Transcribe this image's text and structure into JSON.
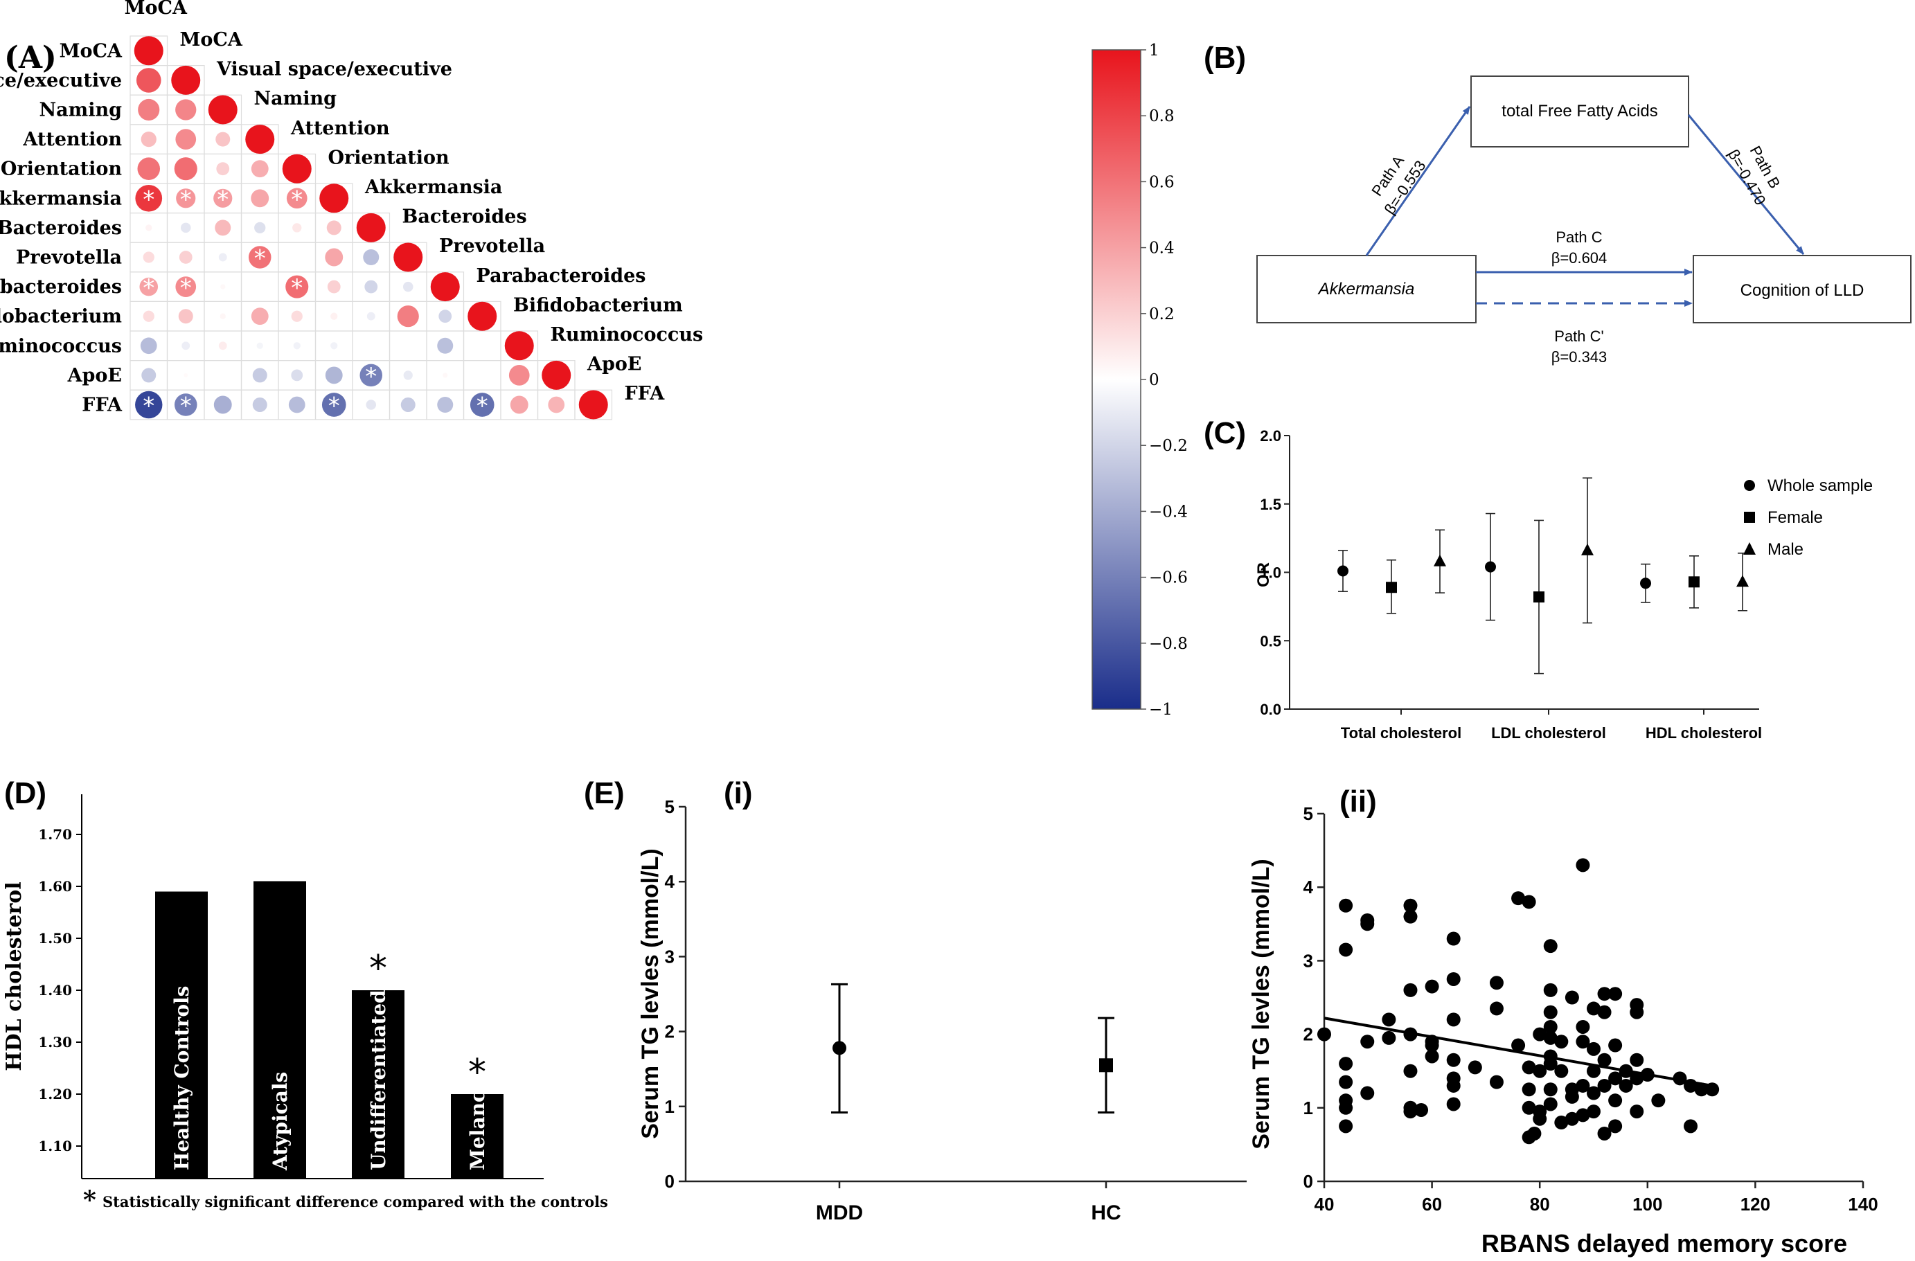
{
  "panels": {
    "A": "(A)",
    "B": "(B)",
    "C": "(C)",
    "D": "(D)",
    "E": "(E)",
    "Ei": "(i)",
    "Eii": "(ii)"
  },
  "chart_data": [
    {
      "id": "A",
      "type": "heatmap",
      "subtype": "correlation-circle-lower-triangle",
      "variables": [
        "MoCA",
        "Visual space/executive",
        "Naming",
        "Attention",
        "Orientation",
        "Akkermansia",
        "Bacteroides",
        "Prevotella",
        "Parabacteroides",
        "Bifidobacterium",
        "Ruminococcus",
        "ApoE",
        "FFA"
      ],
      "matrix": [
        [
          1
        ],
        [
          0.72,
          1
        ],
        [
          0.55,
          0.52,
          1
        ],
        [
          0.28,
          0.5,
          0.25,
          1
        ],
        [
          0.6,
          0.62,
          0.2,
          0.35,
          1
        ],
        [
          0.85,
          0.45,
          0.42,
          0.38,
          0.5,
          1
        ],
        [
          0.05,
          -0.12,
          0.3,
          -0.15,
          0.1,
          0.25,
          1
        ],
        [
          0.15,
          0.2,
          -0.08,
          0.6,
          0.0,
          0.38,
          -0.3,
          1
        ],
        [
          0.4,
          0.5,
          0.03,
          0.0,
          0.62,
          0.2,
          -0.2,
          -0.12,
          1
        ],
        [
          0.15,
          0.25,
          0.04,
          0.35,
          0.15,
          0.06,
          -0.08,
          0.55,
          -0.2,
          1
        ],
        [
          -0.32,
          -0.08,
          0.08,
          -0.05,
          -0.06,
          -0.06,
          0.0,
          0.0,
          -0.3,
          0.0,
          1
        ],
        [
          -0.25,
          0.02,
          0.0,
          -0.25,
          -0.16,
          -0.35,
          -0.6,
          -0.1,
          0.03,
          0.0,
          0.5,
          1
        ],
        [
          -0.88,
          -0.6,
          -0.38,
          -0.25,
          -0.32,
          -0.68,
          -0.12,
          -0.25,
          -0.3,
          -0.68,
          0.38,
          0.32,
          1
        ]
      ],
      "significant": [
        [
          5,
          0
        ],
        [
          5,
          1
        ],
        [
          5,
          2
        ],
        [
          5,
          4
        ],
        [
          7,
          3
        ],
        [
          8,
          0
        ],
        [
          8,
          1
        ],
        [
          8,
          4
        ],
        [
          11,
          9
        ],
        [
          11,
          6
        ],
        [
          12,
          0
        ],
        [
          12,
          1
        ],
        [
          12,
          5
        ],
        [
          12,
          9
        ]
      ],
      "marker": "*",
      "colorbar": {
        "min": -1,
        "max": 1,
        "ticks": [
          "1",
          "0.8",
          "0.6",
          "0.4",
          "0.2",
          "0",
          "−0.2",
          "−0.4",
          "−0.6",
          "−0.8",
          "−1"
        ],
        "high_color": "#e8141c",
        "low_color": "#1a2d8a"
      }
    },
    {
      "id": "C",
      "type": "scatter",
      "subtype": "forest-plot",
      "ylabel": "OR",
      "ylim": [
        0,
        2
      ],
      "yticks": [
        "0.0",
        "0.5",
        "1.0",
        "1.5",
        "2.0"
      ],
      "groups": [
        "Total  cholesterol",
        "LDL cholesterol",
        "HDL cholesterol"
      ],
      "series": [
        {
          "name": "Whole sample",
          "marker": "circle",
          "points": [
            {
              "or": 1.01,
              "lo": 0.86,
              "hi": 1.16
            },
            {
              "or": 1.04,
              "lo": 0.65,
              "hi": 1.43
            },
            {
              "or": 0.92,
              "lo": 0.78,
              "hi": 1.06
            }
          ]
        },
        {
          "name": "Female",
          "marker": "square",
          "points": [
            {
              "or": 0.89,
              "lo": 0.7,
              "hi": 1.09
            },
            {
              "or": 0.82,
              "lo": 0.26,
              "hi": 1.38
            },
            {
              "or": 0.93,
              "lo": 0.74,
              "hi": 1.12
            }
          ]
        },
        {
          "name": "Male",
          "marker": "triangle",
          "points": [
            {
              "or": 1.08,
              "lo": 0.85,
              "hi": 1.31
            },
            {
              "or": 1.16,
              "lo": 0.63,
              "hi": 1.69
            },
            {
              "or": 0.93,
              "lo": 0.72,
              "hi": 1.14
            }
          ]
        }
      ]
    },
    {
      "id": "D",
      "type": "bar",
      "ylabel": "HDL  cholesterol",
      "ylim": [
        1.05,
        1.75
      ],
      "yticks": [
        "1.10",
        "1.20",
        "1.30",
        "1.40",
        "1.50",
        "1.60",
        "1.70"
      ],
      "categories": [
        "Healthy Controls",
        "Atypicals",
        "Undifferentiated",
        "Melancholics"
      ],
      "values": [
        1.59,
        1.61,
        1.4,
        1.2
      ],
      "significant": [
        false,
        false,
        true,
        true
      ],
      "marker": "*",
      "footnote_marker": "*",
      "footnote": "Statistically significant difference compared with the controls"
    },
    {
      "id": "E-i",
      "type": "scatter",
      "subtype": "mean-with-error",
      "ylabel": "Serum TG levles (mmol/L)",
      "ylim": [
        0,
        5
      ],
      "yticks": [
        "0",
        "1",
        "2",
        "3",
        "4",
        "5"
      ],
      "categories": [
        "MDD",
        "HC"
      ],
      "points": [
        {
          "mean": 1.78,
          "lo": 0.92,
          "hi": 2.63,
          "marker": "circle"
        },
        {
          "mean": 1.55,
          "lo": 0.92,
          "hi": 2.18,
          "marker": "square"
        }
      ]
    },
    {
      "id": "E-ii",
      "type": "scatter",
      "xlabel": "RBANS delayed memory score",
      "ylabel": "Serum TG levles (mmol/L)",
      "xlim": [
        40,
        140
      ],
      "ylim": [
        0,
        5
      ],
      "xticks": [
        "40",
        "60",
        "80",
        "100",
        "120",
        "140"
      ],
      "yticks": [
        "0",
        "1",
        "2",
        "3",
        "4",
        "5"
      ],
      "fit_line": {
        "x": [
          40,
          112
        ],
        "y": [
          2.22,
          1.3
        ]
      },
      "points": [
        [
          40,
          2.0
        ],
        [
          44,
          3.75
        ],
        [
          44,
          3.15
        ],
        [
          44,
          1.6
        ],
        [
          44,
          1.35
        ],
        [
          44,
          1.1
        ],
        [
          44,
          1.0
        ],
        [
          44,
          0.75
        ],
        [
          48,
          3.55
        ],
        [
          48,
          3.5
        ],
        [
          48,
          1.9
        ],
        [
          48,
          1.2
        ],
        [
          52,
          2.2
        ],
        [
          52,
          1.95
        ],
        [
          56,
          3.75
        ],
        [
          56,
          3.6
        ],
        [
          56,
          2.6
        ],
        [
          56,
          2.0
        ],
        [
          56,
          1.5
        ],
        [
          56,
          1.0
        ],
        [
          56,
          0.95
        ],
        [
          58,
          0.97
        ],
        [
          60,
          2.65
        ],
        [
          60,
          1.9
        ],
        [
          60,
          1.7
        ],
        [
          60,
          1.85
        ],
        [
          64,
          3.3
        ],
        [
          64,
          2.75
        ],
        [
          64,
          2.2
        ],
        [
          64,
          1.65
        ],
        [
          64,
          1.4
        ],
        [
          64,
          1.3
        ],
        [
          64,
          1.05
        ],
        [
          68,
          1.55
        ],
        [
          72,
          2.7
        ],
        [
          72,
          2.35
        ],
        [
          72,
          1.35
        ],
        [
          76,
          3.85
        ],
        [
          76,
          1.85
        ],
        [
          78,
          3.8
        ],
        [
          78,
          1.55
        ],
        [
          78,
          1.25
        ],
        [
          78,
          1.0
        ],
        [
          78,
          0.6
        ],
        [
          79,
          0.65
        ],
        [
          80,
          2.0
        ],
        [
          80,
          1.5
        ],
        [
          80,
          0.85
        ],
        [
          80,
          0.95
        ],
        [
          82,
          3.2
        ],
        [
          82,
          2.6
        ],
        [
          82,
          2.3
        ],
        [
          82,
          2.1
        ],
        [
          82,
          1.95
        ],
        [
          82,
          1.7
        ],
        [
          82,
          1.6
        ],
        [
          82,
          1.25
        ],
        [
          82,
          1.05
        ],
        [
          84,
          1.9
        ],
        [
          84,
          1.5
        ],
        [
          84,
          0.8
        ],
        [
          86,
          2.5
        ],
        [
          86,
          1.25
        ],
        [
          86,
          1.15
        ],
        [
          86,
          0.85
        ],
        [
          88,
          4.3
        ],
        [
          88,
          2.1
        ],
        [
          88,
          1.9
        ],
        [
          88,
          1.3
        ],
        [
          88,
          0.9
        ],
        [
          90,
          2.35
        ],
        [
          90,
          1.8
        ],
        [
          90,
          1.5
        ],
        [
          90,
          1.2
        ],
        [
          90,
          0.95
        ],
        [
          92,
          2.55
        ],
        [
          92,
          2.3
        ],
        [
          92,
          1.65
        ],
        [
          92,
          1.3
        ],
        [
          92,
          0.65
        ],
        [
          94,
          2.55
        ],
        [
          94,
          1.85
        ],
        [
          94,
          1.4
        ],
        [
          94,
          1.1
        ],
        [
          94,
          0.75
        ],
        [
          96,
          1.5
        ],
        [
          96,
          1.3
        ],
        [
          98,
          2.4
        ],
        [
          98,
          2.3
        ],
        [
          98,
          1.65
        ],
        [
          98,
          1.4
        ],
        [
          98,
          0.95
        ],
        [
          100,
          1.45
        ],
        [
          102,
          1.1
        ],
        [
          106,
          1.4
        ],
        [
          108,
          0.75
        ],
        [
          108,
          1.3
        ],
        [
          110,
          1.25
        ],
        [
          112,
          1.25
        ]
      ]
    }
  ],
  "diagram_b": {
    "nodes": {
      "mediator": "total Free Fatty Acids",
      "predictor": "Akkermansia",
      "outcome": "Cognition of LLD"
    },
    "paths": {
      "a_label": "Path A",
      "a_beta": "β=-0.553",
      "b_label": "Path B",
      "b_beta": "β=-0.470",
      "c_label": "Path C",
      "c_beta": "β=0.604",
      "cprime_label": "Path C'",
      "cprime_beta": "β=0.343"
    },
    "colors": {
      "arrow": "#3a5fae",
      "box": "#444444"
    }
  }
}
